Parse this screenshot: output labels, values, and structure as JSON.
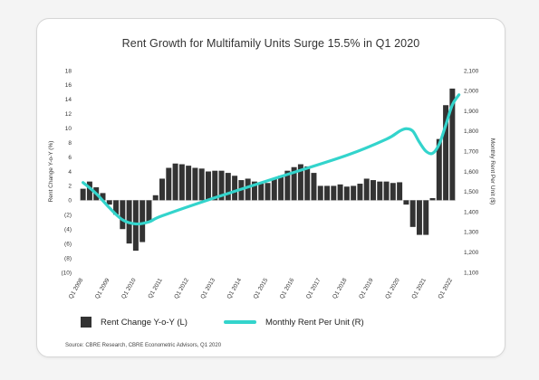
{
  "chart_data": {
    "type": "bar+line",
    "title": "Rent Growth for Multifamily Units Surge 15.5% in Q1 2020",
    "source": "Source: CBRE Research, CBRE Econometric Advisors, Q1 2020",
    "y_left": {
      "label": "Rent Change Y-o-Y (%)",
      "range": [
        -10,
        18
      ],
      "ticks": [
        "18",
        "16",
        "14",
        "12",
        "10",
        "8",
        "6",
        "4",
        "2",
        "0",
        "(2)",
        "(4)",
        "(6)",
        "(8)",
        "(10)"
      ]
    },
    "y_right": {
      "label": "Monthly Rent Per Unit ($)",
      "range": [
        1100,
        2100
      ],
      "ticks": [
        "2,100",
        "2,000",
        "1,900",
        "1,800",
        "1,700",
        "1,600",
        "1,500",
        "1,400",
        "1,300",
        "1,200",
        "1,100"
      ]
    },
    "x_tick_labels": [
      "Q1 2008",
      "Q1 2009",
      "Q1 2010",
      "Q1 2011",
      "Q1 2012",
      "Q1 2013",
      "Q1 2014",
      "Q1 2015",
      "Q1 2016",
      "Q1 2017",
      "Q1 2018",
      "Q1 2019",
      "Q1 2020",
      "Q1 2021",
      "Q1 2022"
    ],
    "series": [
      {
        "name": "Rent Change Y-o-Y (L)",
        "type": "bar",
        "axis": "left",
        "color": "#333333",
        "values": [
          1.6,
          2.6,
          1.8,
          1.0,
          -0.6,
          -2.0,
          -4.0,
          -6.0,
          -7.0,
          -5.8,
          -3.0,
          0.7,
          3.0,
          4.5,
          5.1,
          5.0,
          4.8,
          4.5,
          4.4,
          4.0,
          4.1,
          4.1,
          3.8,
          3.4,
          2.8,
          3.0,
          2.6,
          2.3,
          2.4,
          3.0,
          3.4,
          4.1,
          4.6,
          5.0,
          4.7,
          3.8,
          2.0,
          2.0,
          2.0,
          2.2,
          1.9,
          2.0,
          2.3,
          3.0,
          2.8,
          2.6,
          2.6,
          2.4,
          2.5,
          -0.6,
          -3.7,
          -4.8,
          -4.8,
          0.3,
          8.5,
          13.2,
          15.5
        ]
      },
      {
        "name": "Monthly Rent Per Unit (R)",
        "type": "line",
        "axis": "right",
        "color": "#33d4cc",
        "points": [
          [
            0,
            1545
          ],
          [
            2,
            1490
          ],
          [
            4,
            1420
          ],
          [
            6,
            1360
          ],
          [
            8,
            1340
          ],
          [
            10,
            1350
          ],
          [
            12,
            1380
          ],
          [
            20,
            1470
          ],
          [
            30,
            1575
          ],
          [
            40,
            1680
          ],
          [
            46,
            1760
          ],
          [
            48,
            1800
          ],
          [
            49,
            1812
          ],
          [
            50,
            1800
          ],
          [
            51,
            1745
          ],
          [
            52,
            1700
          ],
          [
            53,
            1690
          ],
          [
            54,
            1735
          ],
          [
            55,
            1830
          ],
          [
            56,
            1930
          ],
          [
            57,
            1980
          ]
        ]
      }
    ],
    "legend": {
      "placement": "bottom"
    }
  }
}
